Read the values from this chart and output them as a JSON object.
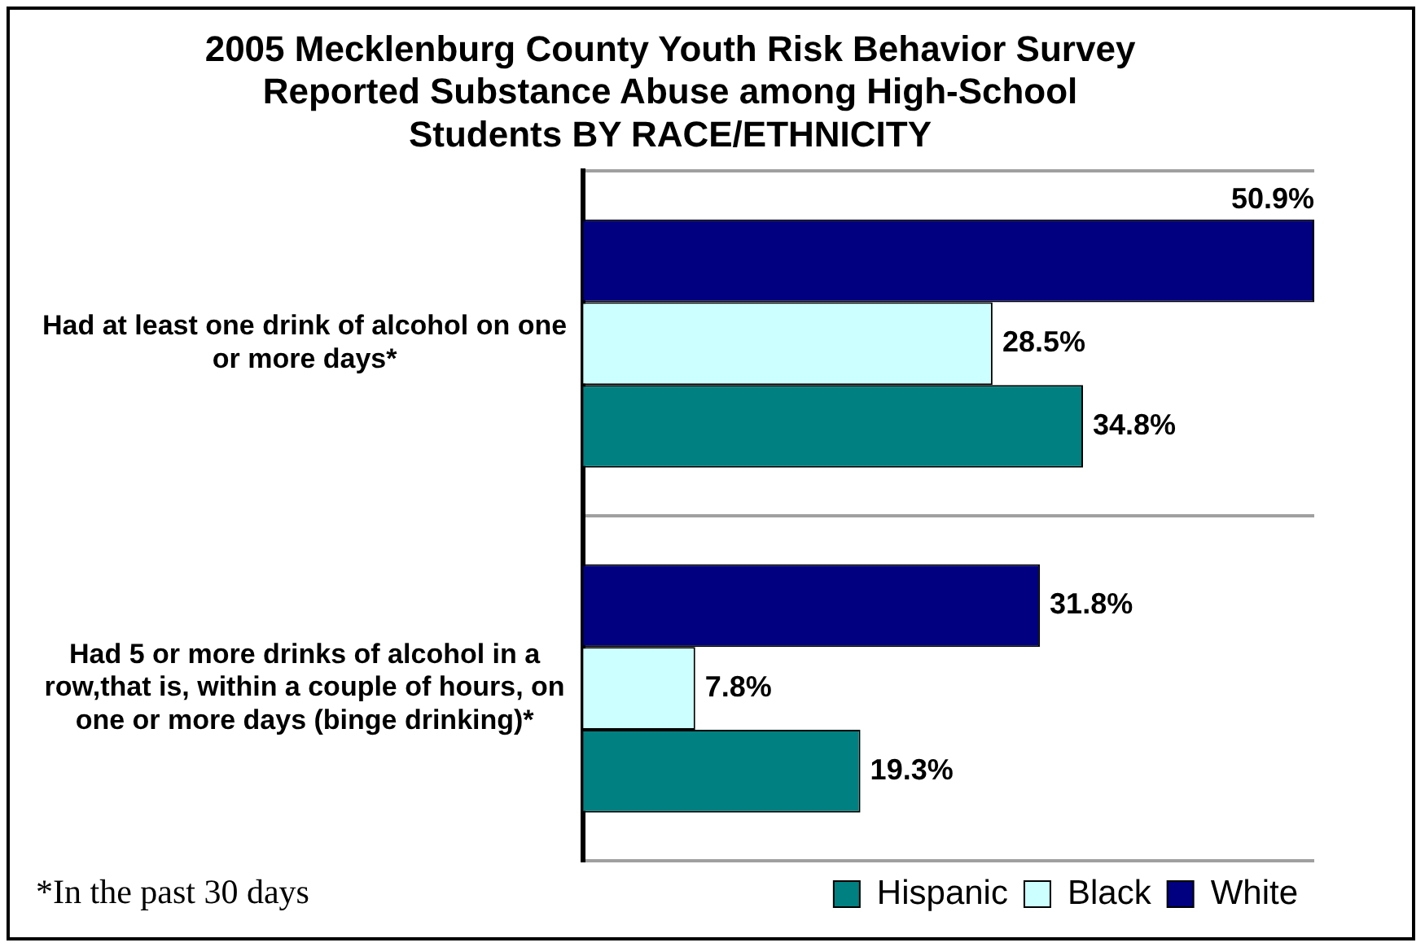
{
  "chart_data": {
    "type": "bar",
    "orientation": "horizontal",
    "title": "2005 Mecklenburg County Youth Risk Behavior Survey Reported Substance Abuse among High-School Students BY RACE/ETHNICITY",
    "categories": [
      "Had at least one drink of alcohol on one or more days*",
      "Had 5 or more drinks of alcohol in a row,that is, within a couple of hours, on one or more days (binge drinking)*"
    ],
    "series": [
      {
        "name": "White",
        "color": "#000080",
        "values": [
          50.9,
          31.8
        ],
        "value_labels": [
          "50.9%",
          "31.8%"
        ]
      },
      {
        "name": "Black",
        "color": "#ccffff",
        "values": [
          28.5,
          7.8
        ],
        "value_labels": [
          "28.5%",
          "7.8%"
        ]
      },
      {
        "name": "Hispanic",
        "color": "#008080",
        "values": [
          34.8,
          19.3
        ],
        "value_labels": [
          "34.8%",
          "19.3%"
        ]
      }
    ],
    "grid": "y",
    "legend": "bottom right",
    "tick_labels": "y",
    "annotations": [
      "*In the past 30 days"
    ]
  }
}
